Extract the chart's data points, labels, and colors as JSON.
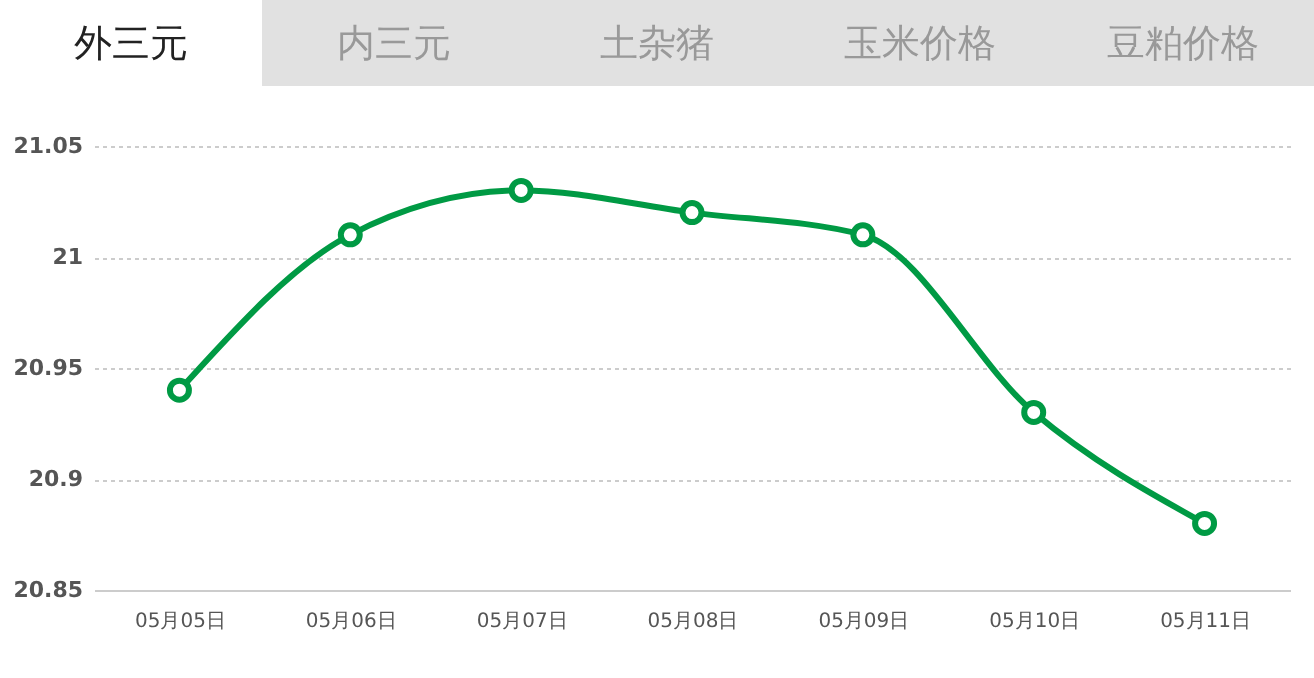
{
  "chart_data": {
    "type": "line",
    "categories": [
      "05月05日",
      "05月06日",
      "05月07日",
      "05月08日",
      "05月09日",
      "05月10日",
      "05月11日"
    ],
    "series": [
      {
        "color": "#009a44",
        "values": [
          20.94,
          21.01,
          21.03,
          21.02,
          21.01,
          20.93,
          20.88
        ]
      }
    ],
    "ylim": [
      20.85,
      21.05
    ],
    "yticks": [
      20.85,
      20.9,
      20.95,
      21,
      21.05
    ],
    "grid": "y",
    "marker": "circle",
    "line_style": "solid",
    "legend": false,
    "annotations": [
      "外三元",
      "内三元",
      "土杂猪",
      "玉米价格",
      "豆粕价格"
    ]
  }
}
